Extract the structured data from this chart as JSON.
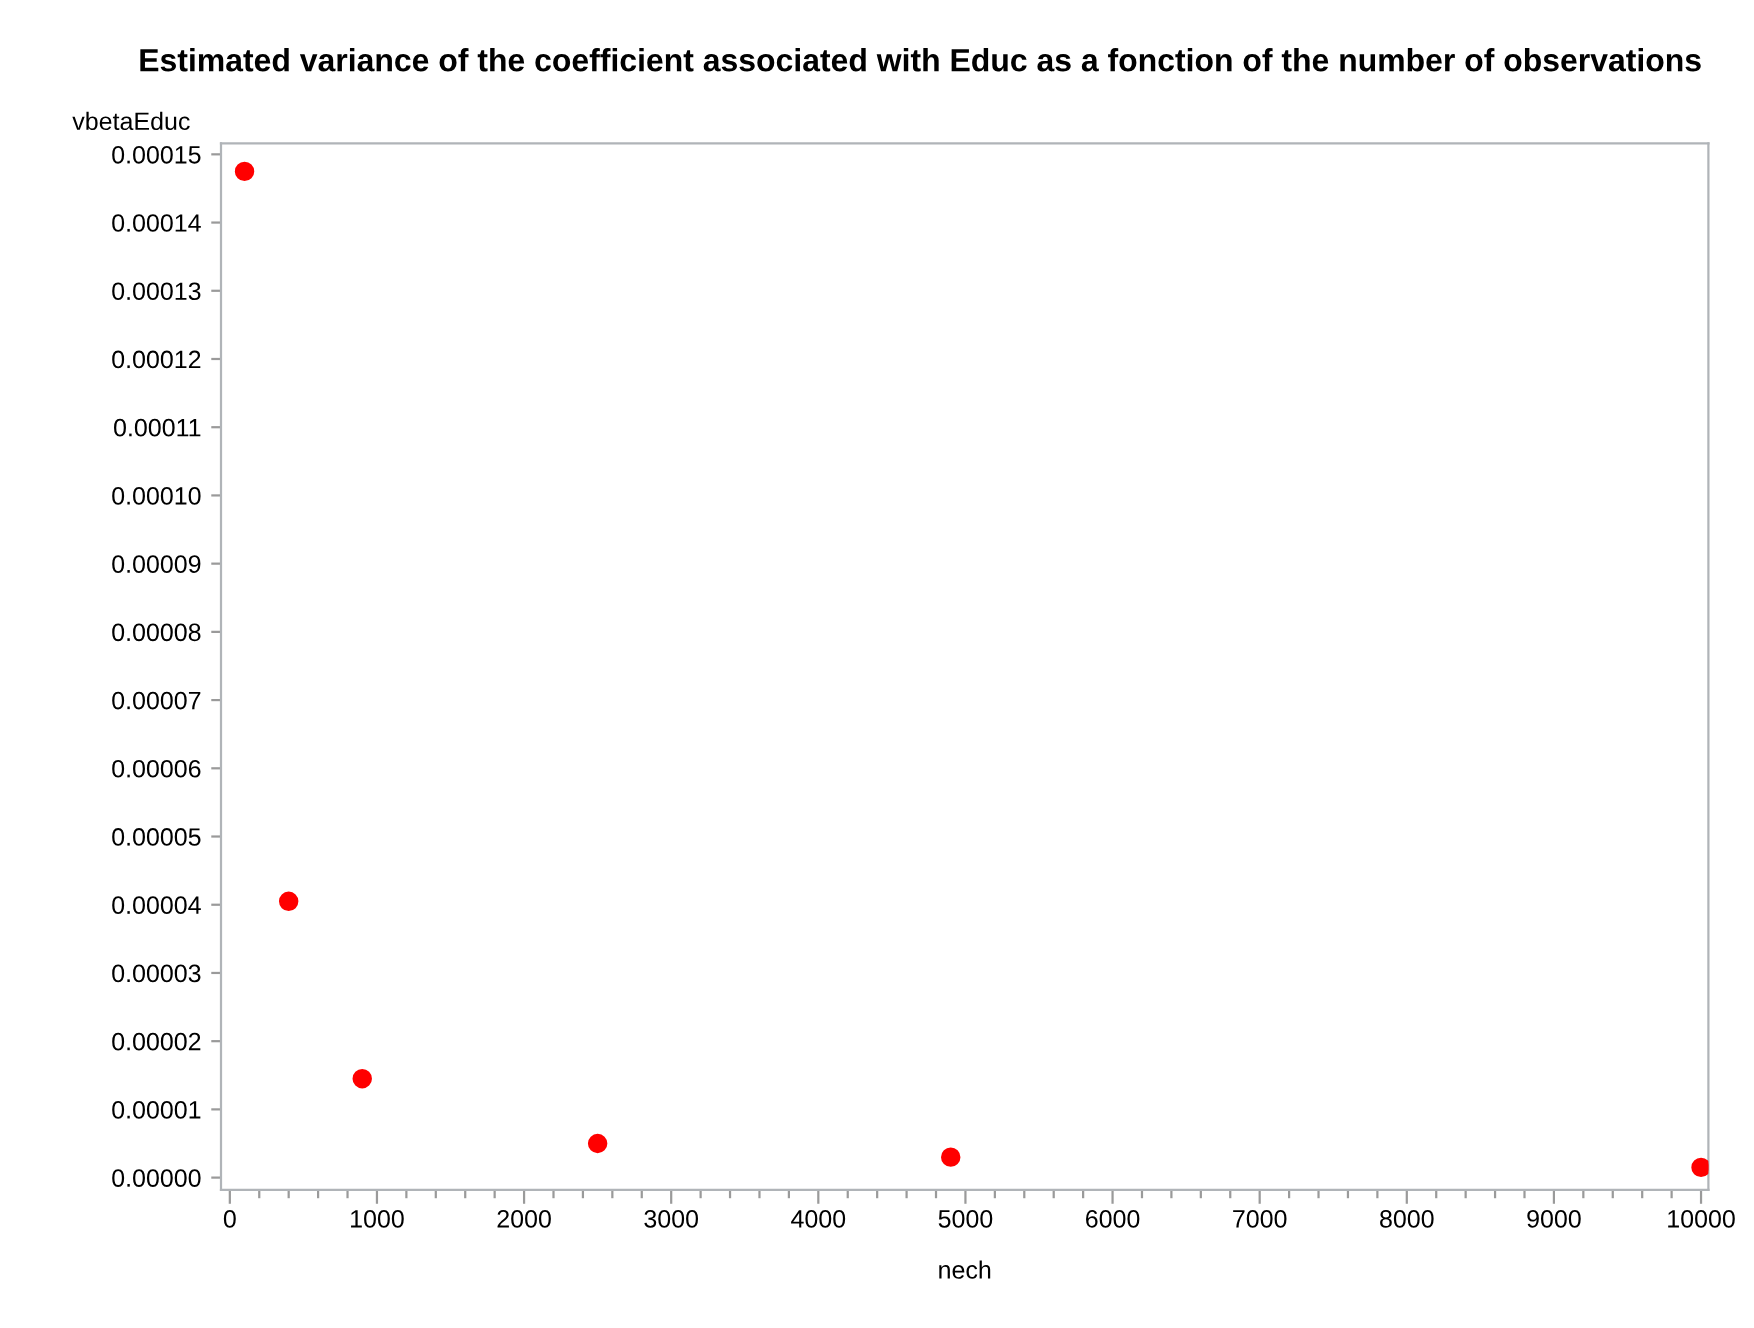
{
  "chart_data": {
    "type": "scatter",
    "title": "Estimated variance of the coefficient associated with Educ as a fonction of the number of observations",
    "xlabel": "nech",
    "ylabel": "vbetaEduc",
    "x": [
      100,
      400,
      900,
      2500,
      4900,
      10000
    ],
    "series": [
      {
        "color": "#ff0000",
        "values": [
          0.0001475,
          4.05e-05,
          1.45e-05,
          5e-06,
          3e-06,
          1.5e-06
        ]
      }
    ],
    "marker": "circle",
    "grid": false,
    "legend": false,
    "xlim": [
      -60,
      10050
    ],
    "ylim": [
      -1.8e-06,
      0.0001516
    ],
    "xticks": [
      0,
      {
        "value": 200,
        "label": null
      },
      {
        "value": 400,
        "label": null
      },
      {
        "value": 600,
        "label": null
      },
      {
        "value": 800,
        "label": null
      },
      1000,
      {
        "value": 1200,
        "label": null
      },
      {
        "value": 1400,
        "label": null
      },
      {
        "value": 1600,
        "label": null
      },
      {
        "value": 1800,
        "label": null
      },
      2000,
      {
        "value": 2200,
        "label": null
      },
      {
        "value": 2400,
        "label": null
      },
      {
        "value": 2600,
        "label": null
      },
      {
        "value": 2800,
        "label": null
      },
      3000,
      {
        "value": 3200,
        "label": null
      },
      {
        "value": 3400,
        "label": null
      },
      {
        "value": 3600,
        "label": null
      },
      {
        "value": 3800,
        "label": null
      },
      4000,
      {
        "value": 4200,
        "label": null
      },
      {
        "value": 4400,
        "label": null
      },
      {
        "value": 4600,
        "label": null
      },
      {
        "value": 4800,
        "label": null
      },
      5000,
      {
        "value": 5200,
        "label": null
      },
      {
        "value": 5400,
        "label": null
      },
      {
        "value": 5600,
        "label": null
      },
      {
        "value": 5800,
        "label": null
      },
      6000,
      {
        "value": 6200,
        "label": null
      },
      {
        "value": 6400,
        "label": null
      },
      {
        "value": 6600,
        "label": null
      },
      {
        "value": 6800,
        "label": null
      },
      7000,
      {
        "value": 7200,
        "label": null
      },
      {
        "value": 7400,
        "label": null
      },
      {
        "value": 7600,
        "label": null
      },
      {
        "value": 7800,
        "label": null
      },
      8000,
      {
        "value": 8200,
        "label": null
      },
      {
        "value": 8400,
        "label": null
      },
      {
        "value": 8600,
        "label": null
      },
      {
        "value": 8800,
        "label": null
      },
      9000,
      {
        "value": 9200,
        "label": null
      },
      {
        "value": 9400,
        "label": null
      },
      {
        "value": 9600,
        "label": null
      },
      {
        "value": 9800,
        "label": null
      },
      10000
    ],
    "yticks": [
      {
        "value": 0,
        "label": "0.00000"
      },
      {
        "value": 1e-05,
        "label": "0.00001"
      },
      {
        "value": 2e-05,
        "label": "0.00002"
      },
      {
        "value": 3e-05,
        "label": "0.00003"
      },
      {
        "value": 4e-05,
        "label": "0.00004"
      },
      {
        "value": 5e-05,
        "label": "0.00005"
      },
      {
        "value": 6e-05,
        "label": "0.00006"
      },
      {
        "value": 7e-05,
        "label": "0.00007"
      },
      {
        "value": 8e-05,
        "label": "0.00008"
      },
      {
        "value": 9e-05,
        "label": "0.00009"
      },
      {
        "value": 0.0001,
        "label": "0.00010"
      },
      {
        "value": 0.00011,
        "label": "0.00011"
      },
      {
        "value": 0.00012,
        "label": "0.00012"
      },
      {
        "value": 0.00013,
        "label": "0.00013"
      },
      {
        "value": 0.00014,
        "label": "0.00014"
      },
      {
        "value": 0.00015,
        "label": "0.00015"
      }
    ]
  }
}
